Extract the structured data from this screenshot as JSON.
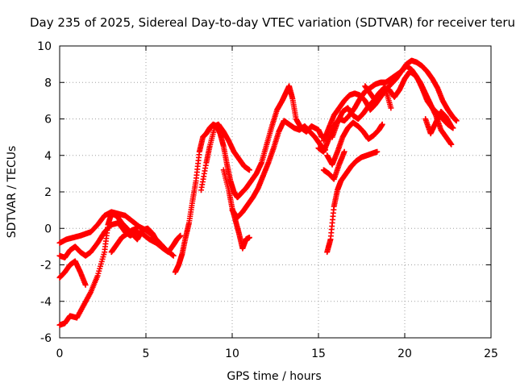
{
  "chart_data": {
    "type": "scatter",
    "title": "Day 235 of 2025, Sidereal Day-to-day VTEC variation (SDTVAR) for receiver teru",
    "xlabel": "GPS time / hours",
    "ylabel": "SDTVAR / TECUs",
    "xlim": [
      0,
      25
    ],
    "ylim": [
      -6,
      10
    ],
    "xticks": [
      0,
      5,
      10,
      15,
      20,
      25
    ],
    "yticks": [
      -6,
      -4,
      -2,
      0,
      2,
      4,
      6,
      8,
      10
    ],
    "xtick_labels": [
      "0",
      "5",
      "10",
      "15",
      "20",
      "25"
    ],
    "ytick_labels": [
      "-6",
      "-4",
      "-2",
      "0",
      "2",
      "4",
      "6",
      "8",
      "10"
    ],
    "grid": true,
    "marker": "+",
    "color": "#ff0000",
    "series": [
      {
        "x": [
          0.0,
          0.3,
          0.6,
          1.0,
          1.4,
          1.8,
          2.2,
          2.6,
          2.8,
          3.0,
          3.3,
          3.6,
          3.9,
          4.2,
          4.5,
          4.8,
          5.1,
          5.4,
          5.7,
          6.0,
          6.3,
          6.6,
          6.8,
          7.0
        ],
        "y": [
          -5.3,
          -5.2,
          -4.8,
          -4.9,
          -4.2,
          -3.5,
          -2.6,
          -1.3,
          0.2,
          0.8,
          0.7,
          0.3,
          0.0,
          -0.3,
          -0.6,
          -0.1,
          0.0,
          -0.3,
          -0.8,
          -1.1,
          -1.3,
          -0.9,
          -0.6,
          -0.4
        ]
      },
      {
        "x": [
          0.0,
          0.4,
          0.8,
          1.2,
          1.5,
          1.8,
          2.2,
          2.6,
          3.0,
          3.4,
          3.8,
          4.2,
          4.6,
          5.0,
          5.4,
          5.8,
          6.2,
          6.6
        ],
        "y": [
          -0.8,
          -0.6,
          -0.5,
          -0.4,
          -0.3,
          -0.2,
          0.2,
          0.7,
          0.9,
          0.8,
          0.7,
          0.4,
          0.1,
          -0.1,
          -0.4,
          -0.8,
          -1.2,
          -1.5
        ]
      },
      {
        "x": [
          0.0,
          0.3,
          0.6,
          0.9,
          1.2,
          1.5,
          1.8,
          2.2,
          2.6,
          3.0,
          3.4,
          3.8,
          4.1,
          4.4,
          4.8,
          5.2,
          5.6,
          6.0
        ],
        "y": [
          -1.5,
          -1.6,
          -1.2,
          -1.0,
          -1.3,
          -1.5,
          -1.3,
          -0.8,
          -0.2,
          0.2,
          0.3,
          -0.2,
          -0.4,
          -0.2,
          -0.3,
          -0.6,
          -0.8,
          -1.1
        ]
      },
      {
        "x": [
          0.0,
          0.3,
          0.6,
          0.9,
          1.2,
          1.5
        ],
        "y": [
          -2.7,
          -2.4,
          -2.0,
          -1.8,
          -2.4,
          -3.1
        ]
      },
      {
        "x": [
          3.0,
          3.3,
          3.6,
          3.9,
          4.2,
          4.5
        ],
        "y": [
          -1.3,
          -0.9,
          -0.5,
          -0.3,
          -0.1,
          0.0
        ]
      },
      {
        "x": [
          6.7,
          6.9,
          7.1,
          7.3,
          7.5,
          7.7,
          7.9,
          8.1,
          8.3,
          8.5,
          8.7,
          8.9,
          9.1,
          9.3,
          9.5,
          9.7,
          9.9,
          10.1,
          10.3,
          10.5,
          10.8,
          11.1,
          11.4,
          11.7,
          12.0,
          12.3,
          12.6,
          12.9,
          13.1,
          13.3,
          13.5,
          13.7,
          14.0,
          14.3,
          14.6,
          15.0,
          15.2
        ],
        "y": [
          -2.4,
          -2.0,
          -1.4,
          -0.5,
          0.3,
          1.5,
          2.6,
          4.2,
          5.0,
          5.2,
          5.5,
          5.7,
          5.6,
          5.2,
          4.5,
          3.5,
          2.6,
          2.0,
          1.7,
          1.9,
          2.2,
          2.6,
          3.0,
          3.6,
          4.6,
          5.6,
          6.5,
          7.0,
          7.4,
          7.8,
          7.1,
          6.0,
          5.5,
          5.3,
          5.6,
          5.4,
          5.0
        ]
      },
      {
        "x": [
          8.2,
          8.5,
          8.7,
          9.0,
          9.2,
          9.5,
          9.8,
          10.1,
          10.4,
          10.7,
          11.0
        ],
        "y": [
          2.1,
          3.6,
          4.5,
          5.6,
          5.7,
          5.3,
          4.8,
          4.2,
          3.8,
          3.4,
          3.2
        ]
      },
      {
        "x": [
          9.5,
          9.8,
          10.0,
          10.2,
          10.4,
          10.6,
          10.8,
          11.0
        ],
        "y": [
          3.2,
          2.1,
          1.1,
          0.4,
          -0.3,
          -1.1,
          -0.6,
          -0.5
        ]
      },
      {
        "x": [
          10.0,
          10.3,
          10.6,
          10.9,
          11.2,
          11.5,
          11.8,
          12.1,
          12.4,
          12.7,
          13.0,
          13.3,
          13.6,
          13.9,
          14.2,
          14.5,
          14.8,
          15.1,
          15.4
        ],
        "y": [
          1.0,
          0.6,
          0.9,
          1.3,
          1.7,
          2.2,
          2.9,
          3.6,
          4.4,
          5.3,
          5.9,
          5.7,
          5.5,
          5.4,
          5.6,
          5.3,
          5.0,
          4.6,
          4.3
        ]
      },
      {
        "x": [
          15.0,
          15.3,
          15.6,
          15.9,
          16.2,
          16.5,
          16.8,
          17.1,
          17.4,
          17.7,
          18.0,
          18.3,
          18.6,
          18.9,
          19.2,
          19.5,
          19.8,
          20.1,
          20.4,
          20.7,
          21.0,
          21.3,
          21.6,
          21.9,
          22.2,
          22.5,
          22.8,
          23.0
        ],
        "y": [
          4.4,
          4.2,
          4.9,
          5.6,
          6.0,
          5.9,
          6.2,
          6.6,
          7.1,
          7.5,
          7.7,
          7.9,
          8.0,
          8.0,
          8.2,
          8.4,
          8.6,
          9.0,
          9.2,
          9.1,
          8.9,
          8.6,
          8.2,
          7.7,
          7.0,
          6.5,
          6.1,
          5.9
        ]
      },
      {
        "x": [
          15.3,
          15.6,
          15.9,
          16.2,
          16.5,
          16.8,
          17.1,
          17.4,
          17.7,
          18.0,
          18.3,
          18.6,
          18.9,
          19.2,
          19.5,
          19.8,
          20.1,
          20.4,
          20.7,
          21.0,
          21.3,
          21.6,
          21.9,
          22.2,
          22.5,
          22.8
        ],
        "y": [
          4.8,
          5.5,
          6.2,
          6.6,
          7.0,
          7.3,
          7.4,
          7.3,
          7.0,
          6.5,
          6.8,
          7.2,
          7.6,
          7.9,
          8.2,
          8.6,
          8.9,
          8.7,
          8.3,
          7.7,
          7.0,
          6.6,
          6.3,
          6.0,
          5.7,
          5.5
        ]
      },
      {
        "x": [
          15.8,
          16.1,
          16.4,
          16.7,
          17.0,
          17.3,
          17.6,
          17.9,
          18.2,
          18.5,
          18.8,
          19.1,
          19.4,
          19.7,
          20.0,
          20.3,
          20.6,
          20.9,
          21.2,
          21.5,
          21.8,
          22.1,
          22.4,
          22.7
        ],
        "y": [
          5.0,
          5.8,
          6.4,
          6.6,
          6.2,
          6.0,
          6.3,
          6.7,
          7.0,
          7.4,
          7.7,
          7.6,
          7.2,
          7.6,
          8.2,
          8.6,
          8.4,
          8.0,
          7.4,
          6.8,
          6.2,
          5.4,
          5.0,
          4.6
        ]
      },
      {
        "x": [
          15.5,
          15.8,
          16.1,
          16.4,
          16.7,
          17.0,
          17.3,
          17.6,
          17.9,
          18.2,
          18.5,
          18.7
        ],
        "y": [
          4.0,
          3.5,
          4.2,
          5.0,
          5.5,
          5.8,
          5.6,
          5.3,
          4.9,
          5.1,
          5.4,
          5.7
        ]
      },
      {
        "x": [
          15.5,
          15.7,
          15.9,
          16.1,
          16.3,
          16.6,
          16.9,
          17.2,
          17.5,
          17.8,
          18.1,
          18.4
        ],
        "y": [
          -1.3,
          -0.6,
          1.2,
          2.1,
          2.6,
          3.0,
          3.4,
          3.7,
          3.9,
          4.0,
          4.1,
          4.2
        ]
      },
      {
        "x": [
          15.3,
          15.6,
          15.9,
          16.2,
          16.5
        ],
        "y": [
          3.2,
          3.0,
          2.7,
          3.5,
          4.2
        ]
      },
      {
        "x": [
          17.7,
          18.0,
          18.3,
          18.6,
          18.9,
          19.2
        ],
        "y": [
          7.8,
          7.4,
          7.0,
          7.3,
          7.6,
          6.6
        ]
      },
      {
        "x": [
          21.2,
          21.5,
          21.8,
          22.1,
          22.4,
          22.7
        ],
        "y": [
          6.0,
          5.2,
          5.8,
          6.4,
          6.1,
          5.6
        ]
      }
    ]
  }
}
